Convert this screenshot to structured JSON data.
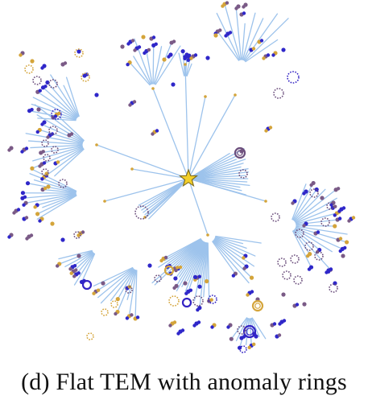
{
  "caption": "(d) Flat TEM with anomaly rings",
  "colors": {
    "edge": "#9dc3ec",
    "blue_node": "#2f27c9",
    "purple_node": "#7a5a86",
    "gold_node": "#d4a43a",
    "star_fill": "#f3cf2a",
    "star_stroke": "#7d6a1a",
    "ring_purple": "#6b4e7c",
    "ring_blue": "#3323c4",
    "ring_gold": "#c99a32"
  },
  "icons": {
    "center": "star-icon",
    "anomaly": "dotted-ring-icon",
    "leaf": "dot-icon"
  }
}
